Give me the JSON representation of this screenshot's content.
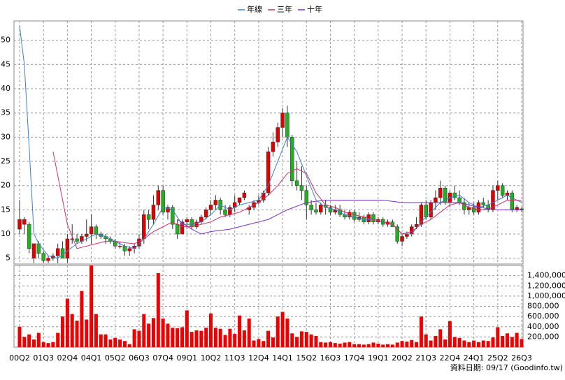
{
  "chart_data": {
    "type": "candlestick",
    "legend": {
      "position": "top",
      "entries": [
        {
          "name": "年線",
          "color": "#3b7fd0"
        },
        {
          "name": "三年",
          "color": "#d0306a"
        },
        {
          "name": "十年",
          "color": "#7a2fc4"
        }
      ]
    },
    "categories": [
      "00Q2",
      null,
      null,
      null,
      null,
      "01Q3",
      null,
      null,
      null,
      null,
      "02Q4",
      null,
      null,
      null,
      null,
      "04Q1",
      null,
      null,
      null,
      null,
      "05Q2",
      null,
      null,
      null,
      null,
      "06Q3",
      null,
      null,
      null,
      null,
      "07Q4",
      null,
      null,
      null,
      null,
      "09Q1",
      null,
      null,
      null,
      null,
      "10Q2",
      null,
      null,
      null,
      null,
      "11Q3",
      null,
      null,
      null,
      null,
      "12Q4",
      null,
      null,
      null,
      null,
      "14Q1",
      null,
      null,
      null,
      null,
      "15Q2",
      null,
      null,
      null,
      null,
      "16Q3",
      null,
      null,
      null,
      null,
      "17Q4",
      null,
      null,
      null,
      null,
      "19Q1",
      null,
      null,
      null,
      null,
      "20Q2",
      null,
      null,
      null,
      null,
      "21Q3",
      null,
      null,
      null,
      null,
      "22Q4",
      null,
      null,
      null,
      null,
      "24Q1",
      null,
      null,
      null,
      null,
      "25Q2",
      null,
      null,
      null,
      null,
      "26Q3"
    ],
    "candles": [
      [
        11,
        17,
        10,
        13
      ],
      [
        12,
        13.5,
        10,
        13
      ],
      [
        12,
        12.5,
        6,
        7
      ],
      [
        5,
        8,
        4,
        8
      ],
      [
        8,
        8.5,
        5,
        6
      ],
      [
        6,
        6.5,
        4,
        4.5
      ],
      [
        4.5,
        5.5,
        4,
        5
      ],
      [
        5,
        6,
        4.5,
        5.5
      ],
      [
        5.5,
        8,
        4,
        7
      ],
      [
        7,
        8.5,
        5,
        5
      ],
      [
        5,
        10,
        4,
        9
      ],
      [
        9,
        12,
        8,
        9
      ],
      [
        9,
        10,
        8,
        8.5
      ],
      [
        8.5,
        10,
        8,
        9.5
      ],
      [
        9.5,
        13,
        8.5,
        10
      ],
      [
        10,
        14,
        8,
        11.5
      ],
      [
        11.5,
        12,
        9,
        10
      ],
      [
        10,
        10.5,
        9,
        9.5
      ],
      [
        9.5,
        10,
        8,
        9
      ],
      [
        9,
        9.5,
        8,
        8.5
      ],
      [
        8.5,
        9,
        7,
        7.5
      ],
      [
        7.5,
        8.5,
        7,
        7.5
      ],
      [
        7.5,
        8,
        5.5,
        6.5
      ],
      [
        6.5,
        7.5,
        5.5,
        7
      ],
      [
        7,
        8,
        6,
        7.5
      ],
      [
        7.5,
        10,
        7,
        9
      ],
      [
        9,
        15,
        8,
        14
      ],
      [
        14,
        15,
        11,
        13
      ],
      [
        13,
        18,
        12,
        16
      ],
      [
        16,
        20,
        15,
        19
      ],
      [
        19,
        20,
        14,
        14.5
      ],
      [
        14.5,
        16,
        13,
        15.5
      ],
      [
        15.5,
        16,
        11,
        12
      ],
      [
        12,
        13,
        9,
        10
      ],
      [
        10,
        13,
        10,
        12.5
      ],
      [
        12.5,
        13.5,
        11,
        13
      ],
      [
        13,
        13.5,
        11,
        11.5
      ],
      [
        11.5,
        13,
        11,
        12.5
      ],
      [
        12.5,
        14,
        12,
        13.5
      ],
      [
        13.5,
        15.5,
        13,
        15
      ],
      [
        15,
        17,
        14,
        16
      ],
      [
        16,
        18,
        15,
        17
      ],
      [
        17,
        17.5,
        14,
        15
      ],
      [
        15,
        16,
        13.5,
        14
      ],
      [
        14,
        16,
        13.5,
        15.5
      ],
      [
        15.5,
        18,
        14.5,
        16.5
      ],
      [
        16.5,
        17.5,
        16,
        17.5
      ],
      [
        17.5,
        19,
        17,
        18.5
      ],
      [
        15,
        16,
        14,
        15.5
      ],
      [
        15.5,
        17,
        15,
        16.5
      ],
      [
        16.5,
        18,
        16,
        17
      ],
      [
        17,
        19,
        16.5,
        18.5
      ],
      [
        18.5,
        28,
        18,
        27
      ],
      [
        27,
        31,
        26,
        29
      ],
      [
        29,
        33,
        28,
        32
      ],
      [
        32,
        36,
        30,
        35
      ],
      [
        35,
        36.5,
        28,
        30
      ],
      [
        30,
        30.5,
        20,
        21
      ],
      [
        21,
        25,
        19,
        20
      ],
      [
        20,
        24,
        17,
        19
      ],
      [
        19,
        20,
        13,
        16
      ],
      [
        16,
        17,
        14,
        15
      ],
      [
        15,
        16.5,
        14,
        14.5
      ],
      [
        14.5,
        16.5,
        14,
        16
      ],
      [
        16,
        17,
        14,
        15.5
      ],
      [
        15.5,
        16,
        14,
        14.5
      ],
      [
        14.5,
        16,
        14,
        15
      ],
      [
        15,
        16,
        13.5,
        14
      ],
      [
        14,
        15,
        13,
        13.5
      ],
      [
        13.5,
        15,
        13,
        14.5
      ],
      [
        14.5,
        15,
        12.5,
        13
      ],
      [
        13,
        14.5,
        12.5,
        13.5
      ],
      [
        13.5,
        14,
        12,
        12.5
      ],
      [
        12.5,
        14.5,
        12,
        14
      ],
      [
        14,
        14.5,
        12,
        12.5
      ],
      [
        12.5,
        13.5,
        12,
        13
      ],
      [
        13,
        13.5,
        11.5,
        12
      ],
      [
        12,
        13,
        11.5,
        12.5
      ],
      [
        12.5,
        13,
        11.5,
        11.5
      ],
      [
        11.5,
        12,
        8,
        8.5
      ],
      [
        8.5,
        10,
        7.5,
        9.5
      ],
      [
        9.5,
        10.5,
        9,
        10
      ],
      [
        10,
        12,
        9.5,
        11.5
      ],
      [
        11.5,
        13.5,
        11,
        12
      ],
      [
        12,
        16.5,
        11.5,
        16
      ],
      [
        16,
        17,
        13,
        13.5
      ],
      [
        13.5,
        17,
        13,
        16.5
      ],
      [
        16.5,
        19,
        15,
        17.5
      ],
      [
        17.5,
        21,
        16,
        19.5
      ],
      [
        19.5,
        20,
        16,
        16.5
      ],
      [
        16.5,
        19,
        15.5,
        18.5
      ],
      [
        18.5,
        20,
        17,
        17.5
      ],
      [
        17.5,
        19,
        16,
        16.5
      ],
      [
        16.5,
        17.5,
        14,
        15
      ],
      [
        15,
        16.5,
        14,
        15.5
      ],
      [
        15.5,
        16.5,
        14,
        14.5
      ],
      [
        14.5,
        17,
        14,
        16.5
      ],
      [
        16.5,
        17.5,
        15.5,
        16
      ],
      [
        16,
        17,
        14.5,
        15
      ],
      [
        15,
        20,
        14.5,
        19
      ],
      [
        19,
        21,
        17,
        20
      ],
      [
        20,
        20.5,
        17.5,
        18
      ],
      [
        18,
        19,
        17,
        18.5
      ],
      [
        18.5,
        19,
        14.5,
        15
      ],
      [
        15,
        16,
        14.5,
        15.5
      ],
      [
        15,
        15.5,
        14.5,
        15.2
      ]
    ],
    "up_color": "#e00000",
    "down_color": "#22b022",
    "ma_lines": [
      {
        "x": [
          0,
          1,
          2,
          3,
          4,
          6,
          8,
          10,
          12,
          14,
          16,
          18,
          20,
          22,
          24,
          26,
          28,
          30,
          32,
          34,
          36,
          38,
          40,
          42,
          44,
          46,
          48,
          50,
          52,
          54,
          56,
          58,
          60,
          62,
          64,
          66,
          68,
          70,
          72,
          74,
          76,
          78,
          80,
          82,
          84,
          86,
          88,
          90,
          92,
          94,
          96,
          98,
          100,
          102,
          104,
          105
        ],
        "values": [
          53,
          45,
          28,
          10,
          8,
          5.5,
          5,
          6.5,
          8,
          9,
          10,
          9.5,
          8.5,
          7.5,
          7,
          9,
          12,
          15.5,
          15,
          12,
          12,
          12.5,
          14,
          16,
          15,
          16,
          16.5,
          17,
          20,
          25,
          30,
          27,
          22,
          17,
          15.5,
          15,
          14,
          13.5,
          13,
          13,
          12.5,
          12,
          10,
          10,
          12.5,
          14.5,
          16.5,
          17.5,
          18,
          16.5,
          15.5,
          16,
          17,
          18,
          17,
          16.5
        ]
      },
      {
        "x": [
          7,
          8,
          10,
          12,
          14,
          16,
          18,
          20,
          22,
          24,
          26,
          28,
          30,
          32,
          34,
          36,
          38,
          40,
          42,
          44,
          46,
          48,
          50,
          52,
          54,
          56,
          58,
          60,
          62,
          64,
          66,
          68,
          70,
          72,
          74,
          76,
          78,
          80,
          82,
          84,
          86,
          88,
          90,
          92,
          94,
          96,
          98,
          100,
          102,
          104,
          105
        ],
        "values": [
          27,
          22,
          12,
          7,
          7.5,
          8,
          8.5,
          8.5,
          8.2,
          8,
          9,
          10.5,
          11.5,
          12.5,
          11.5,
          11.5,
          12,
          12.5,
          13.5,
          14,
          14.5,
          15.5,
          16.5,
          18,
          20,
          22.5,
          23.5,
          22.5,
          18.5,
          16,
          15.5,
          14.5,
          14,
          13.5,
          13,
          12.5,
          12,
          10,
          10.5,
          12,
          13,
          14.5,
          16,
          16.5,
          15.5,
          15,
          15.2,
          16,
          17,
          17,
          16.8
        ]
      },
      {
        "x": [
          33,
          36,
          38,
          40,
          44,
          48,
          52,
          56,
          60,
          64,
          70,
          76,
          80,
          84,
          88,
          92,
          96,
          100,
          105
        ],
        "values": [
          13,
          11,
          10,
          10.5,
          11,
          12,
          13,
          15,
          16.5,
          17,
          17,
          17,
          16.5,
          16.5,
          16.5,
          16.5,
          15.5,
          15,
          15
        ]
      }
    ],
    "ylim": [
      3.8,
      54
    ],
    "yticks": [
      5,
      10,
      15,
      20,
      25,
      30,
      35,
      40,
      45,
      50
    ],
    "volume": {
      "color": "#ee0000",
      "values": [
        400000,
        200000,
        250000,
        150000,
        280000,
        100000,
        80000,
        100000,
        280000,
        600000,
        950000,
        650000,
        520000,
        1100000,
        540000,
        1600000,
        650000,
        250000,
        250000,
        150000,
        180000,
        150000,
        120000,
        60000,
        350000,
        320000,
        650000,
        460000,
        570000,
        1450000,
        560000,
        460000,
        380000,
        370000,
        390000,
        720000,
        300000,
        330000,
        320000,
        380000,
        660000,
        380000,
        360000,
        240000,
        360000,
        260000,
        620000,
        330000,
        560000,
        130000,
        160000,
        120000,
        320000,
        190000,
        600000,
        690000,
        560000,
        270000,
        200000,
        310000,
        300000,
        250000,
        220000,
        100000,
        90000,
        100000,
        80000,
        70000,
        90000,
        100000,
        60000,
        60000,
        50000,
        60000,
        90000,
        70000,
        50000,
        60000,
        50000,
        90000,
        120000,
        110000,
        140000,
        100000,
        600000,
        250000,
        130000,
        220000,
        350000,
        150000,
        510000,
        200000,
        180000,
        130000,
        100000,
        130000,
        100000,
        130000,
        120000,
        190000,
        390000,
        220000,
        270000,
        200000,
        280000,
        160000
      ],
      "ylim": [
        0,
        1600000
      ],
      "yticks": [
        {
          "value": 200000,
          "label": "200,000"
        },
        {
          "value": 400000,
          "label": "400,000"
        },
        {
          "value": 600000,
          "label": "600,000"
        },
        {
          "value": 800000,
          "label": "800,000"
        },
        {
          "value": 1000000,
          "label": "1,000,000"
        },
        {
          "value": 1200000,
          "label": "1,200,000"
        },
        {
          "value": 1400000,
          "label": "1,400,000"
        }
      ]
    },
    "grid": true,
    "source": "資料日期: 09/17 (Goodinfo.tw)"
  }
}
